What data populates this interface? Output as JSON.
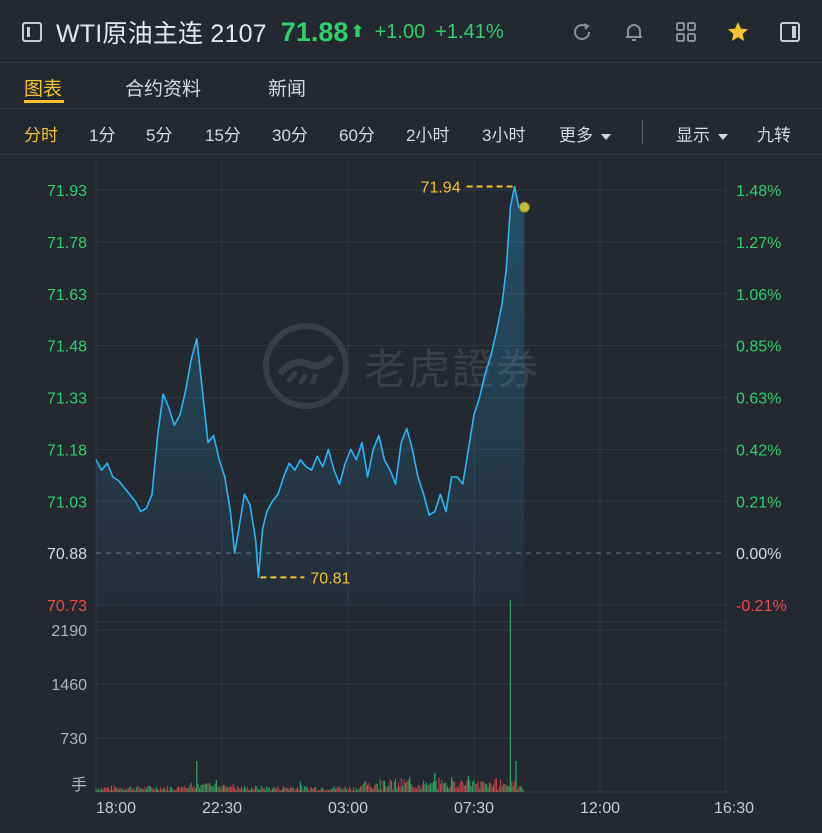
{
  "header": {
    "title": "WTI原油主连 2107",
    "price": "71.88",
    "change": "+1.00",
    "change_pct": "+1.41%",
    "icons": [
      "back-icon",
      "refresh-icon",
      "bell-icon",
      "grid-icon",
      "star-icon",
      "sidebar-icon"
    ]
  },
  "tabs": [
    {
      "label": "图表",
      "active": true
    },
    {
      "label": "合约资料",
      "active": false
    },
    {
      "label": "新闻",
      "active": false
    }
  ],
  "periods": [
    {
      "label": "分时",
      "active": true
    },
    {
      "label": "1分"
    },
    {
      "label": "5分"
    },
    {
      "label": "15分"
    },
    {
      "label": "30分"
    },
    {
      "label": "60分"
    },
    {
      "label": "2小时"
    },
    {
      "label": "3小时"
    },
    {
      "label": "更多"
    }
  ],
  "display_label": "显示",
  "nine_label": "九转",
  "watermark": "老虎證券",
  "colors": {
    "up": "#2fcf6a",
    "down": "#f04848",
    "accent": "#f2c230",
    "line": "#29b6f6"
  },
  "chart_data": {
    "type": "line",
    "y_left_ticks": [
      "71.93",
      "71.78",
      "71.63",
      "71.48",
      "71.33",
      "71.18",
      "71.03",
      "70.88",
      "70.73"
    ],
    "y_right_ticks": [
      "1.48%",
      "1.27%",
      "1.06%",
      "0.85%",
      "0.63%",
      "0.42%",
      "0.21%",
      "0.00%",
      "-0.21%"
    ],
    "prev_close": 70.88,
    "ylim": [
      70.73,
      71.93
    ],
    "x_ticks": [
      "18:00",
      "22:30",
      "03:00",
      "07:30",
      "12:00",
      "16:30"
    ],
    "x_range_hours": [
      0,
      22.5
    ],
    "high_label": "71.94",
    "low_label": "70.81",
    "price_series": [
      [
        0.0,
        71.15
      ],
      [
        0.2,
        71.12
      ],
      [
        0.4,
        71.14
      ],
      [
        0.6,
        71.1
      ],
      [
        0.8,
        71.09
      ],
      [
        1.0,
        71.07
      ],
      [
        1.2,
        71.05
      ],
      [
        1.4,
        71.03
      ],
      [
        1.6,
        71.0
      ],
      [
        1.8,
        71.01
      ],
      [
        2.0,
        71.05
      ],
      [
        2.2,
        71.22
      ],
      [
        2.4,
        71.34
      ],
      [
        2.6,
        71.3
      ],
      [
        2.8,
        71.25
      ],
      [
        3.0,
        71.28
      ],
      [
        3.2,
        71.35
      ],
      [
        3.4,
        71.44
      ],
      [
        3.6,
        71.5
      ],
      [
        3.8,
        71.35
      ],
      [
        4.0,
        71.2
      ],
      [
        4.2,
        71.22
      ],
      [
        4.4,
        71.15
      ],
      [
        4.6,
        71.1
      ],
      [
        4.8,
        71.0
      ],
      [
        4.95,
        70.88
      ],
      [
        5.1,
        70.95
      ],
      [
        5.3,
        71.05
      ],
      [
        5.5,
        71.02
      ],
      [
        5.7,
        70.92
      ],
      [
        5.8,
        70.81
      ],
      [
        5.95,
        70.95
      ],
      [
        6.1,
        71.0
      ],
      [
        6.3,
        71.03
      ],
      [
        6.5,
        71.05
      ],
      [
        6.7,
        71.1
      ],
      [
        6.9,
        71.14
      ],
      [
        7.1,
        71.12
      ],
      [
        7.3,
        71.15
      ],
      [
        7.5,
        71.13
      ],
      [
        7.7,
        71.12
      ],
      [
        7.9,
        71.16
      ],
      [
        8.1,
        71.13
      ],
      [
        8.3,
        71.18
      ],
      [
        8.5,
        71.12
      ],
      [
        8.7,
        71.08
      ],
      [
        8.9,
        71.14
      ],
      [
        9.1,
        71.18
      ],
      [
        9.3,
        71.15
      ],
      [
        9.5,
        71.2
      ],
      [
        9.7,
        71.1
      ],
      [
        9.9,
        71.18
      ],
      [
        10.1,
        71.22
      ],
      [
        10.3,
        71.15
      ],
      [
        10.5,
        71.12
      ],
      [
        10.7,
        71.08
      ],
      [
        10.9,
        71.2
      ],
      [
        11.1,
        71.24
      ],
      [
        11.3,
        71.18
      ],
      [
        11.5,
        71.1
      ],
      [
        11.7,
        71.05
      ],
      [
        11.9,
        70.99
      ],
      [
        12.1,
        71.0
      ],
      [
        12.3,
        71.05
      ],
      [
        12.5,
        71.0
      ],
      [
        12.7,
        71.1
      ],
      [
        12.9,
        71.1
      ],
      [
        13.1,
        71.08
      ],
      [
        13.3,
        71.18
      ],
      [
        13.5,
        71.28
      ],
      [
        13.7,
        71.33
      ],
      [
        13.9,
        71.4
      ],
      [
        14.1,
        71.45
      ],
      [
        14.3,
        71.52
      ],
      [
        14.5,
        71.6
      ],
      [
        14.65,
        71.7
      ],
      [
        14.8,
        71.88
      ],
      [
        14.95,
        71.94
      ],
      [
        15.1,
        71.88
      ],
      [
        15.3,
        71.88
      ]
    ],
    "volume_ticks": [
      "2190",
      "1460",
      "730"
    ],
    "volume_unit": "手",
    "ylim_volume": [
      0,
      2300
    ],
    "volume_spikes": [
      [
        3.6,
        420
      ],
      [
        4.3,
        160
      ],
      [
        7.3,
        140
      ],
      [
        10.3,
        150
      ],
      [
        11.2,
        200
      ],
      [
        12.1,
        260
      ],
      [
        12.7,
        200
      ],
      [
        13.3,
        220
      ],
      [
        14.8,
        2600
      ],
      [
        15.0,
        420
      ]
    ]
  }
}
